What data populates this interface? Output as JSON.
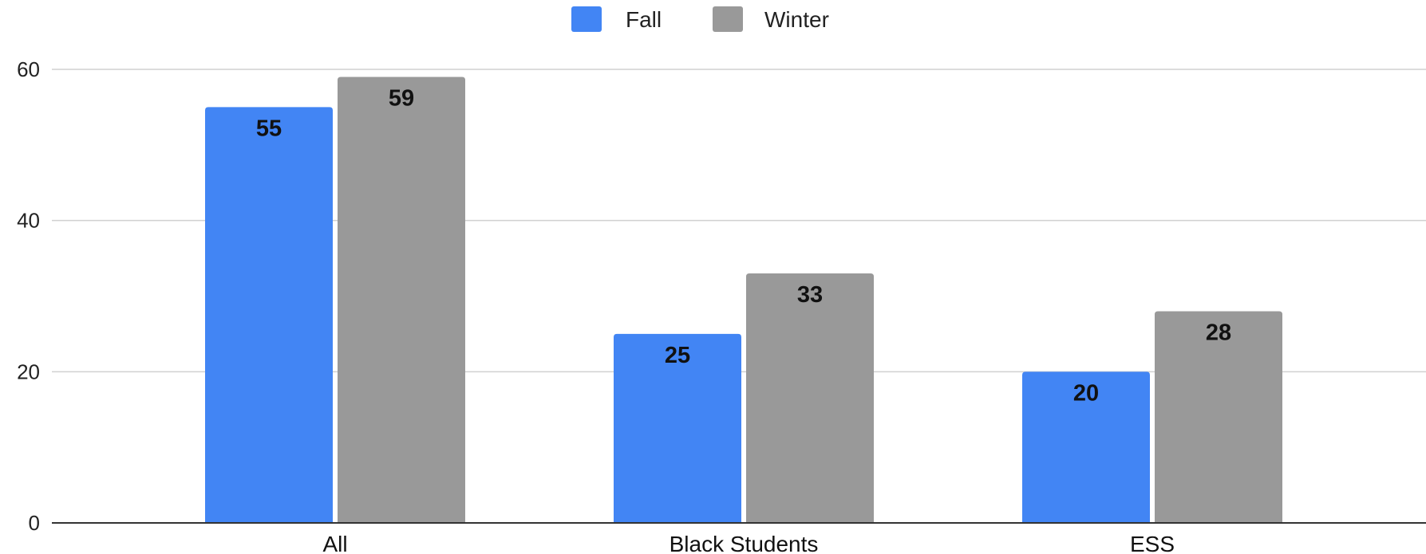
{
  "chart_data": {
    "type": "bar",
    "categories": [
      "All",
      "Black Students",
      "ESS"
    ],
    "series": [
      {
        "name": "Fall",
        "values": [
          55,
          25,
          20
        ],
        "color": "#4285f4"
      },
      {
        "name": "Winter",
        "values": [
          59,
          33,
          28
        ],
        "color": "#999999"
      }
    ],
    "ylim": [
      0,
      60
    ],
    "yticks": [
      "0",
      "20",
      "40",
      "60"
    ],
    "grid": true,
    "legend_position": "top-center",
    "title": "",
    "xlabel": "",
    "ylabel": ""
  }
}
